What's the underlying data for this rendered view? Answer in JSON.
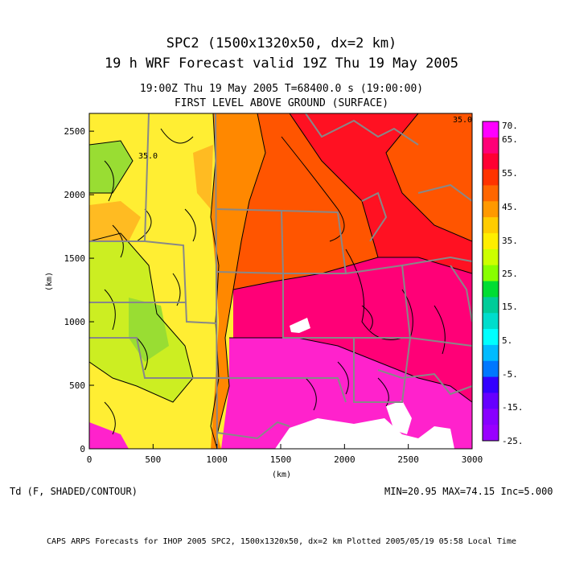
{
  "header": {
    "title_line_1": "SPC2 (1500x1320x50, dx=2 km)",
    "title_line_2": "19 h WRF Forecast valid 19Z Thu 19 May 2005",
    "sub_line_1": "19:00Z Thu 19 May 2005     T=68400.0 s (19:00:00)",
    "sub_line_2": "FIRST LEVEL ABOVE GROUND (SURFACE)"
  },
  "axes": {
    "x_label": "(km)",
    "y_label": "(km)",
    "x_range": [
      0,
      3000
    ],
    "y_range": [
      0,
      2640
    ],
    "x_ticks": [
      "0",
      "500",
      "1000",
      "1500",
      "2000",
      "2500",
      "3000"
    ],
    "y_ticks": [
      "0",
      "500",
      "1000",
      "1500",
      "2000",
      "2500"
    ]
  },
  "map_annotations": [
    {
      "text": "35.0",
      "x_km": 440,
      "y_km": 2300
    },
    {
      "text": "35.0",
      "x_km": 2940,
      "y_km": 2590
    }
  ],
  "colorbar": {
    "labels": [
      "70.",
      "65.",
      "55.",
      "45.",
      "35.",
      "25.",
      "15.",
      "5.",
      "-5.",
      "-15.",
      "-25."
    ],
    "colors": [
      "#ff00ff",
      "#ff0077",
      "#ff0033",
      "#ff3300",
      "#ff6600",
      "#ff9900",
      "#ffcc00",
      "#ffee00",
      "#ccff00",
      "#88ff00",
      "#00dd33",
      "#00cc99",
      "#00ddcc",
      "#00ffff",
      "#00bbff",
      "#0077ff",
      "#3300ff",
      "#6600ff",
      "#8800ff",
      "#9900ff"
    ]
  },
  "field_colors": {
    "green": "#99dd33",
    "yellow_green": "#ccee22",
    "yellow": "#ffee33",
    "light_orange": "#ffbb22",
    "orange": "#ff8800",
    "dark_orange": "#ff5500",
    "red": "#ff1122",
    "magenta_red": "#ff0077",
    "magenta": "#ff22cc",
    "borders": "#888888"
  },
  "footer": {
    "variable": "Td (F, SHADED/CONTOUR)",
    "stats": "MIN=20.95 MAX=74.15 Inc=5.000",
    "caption": "CAPS ARPS Forecasts for IHOP 2005  SPC2, 1500x1320x50, dx=2 km  Plotted 2005/05/19 05:58 Local Time"
  }
}
